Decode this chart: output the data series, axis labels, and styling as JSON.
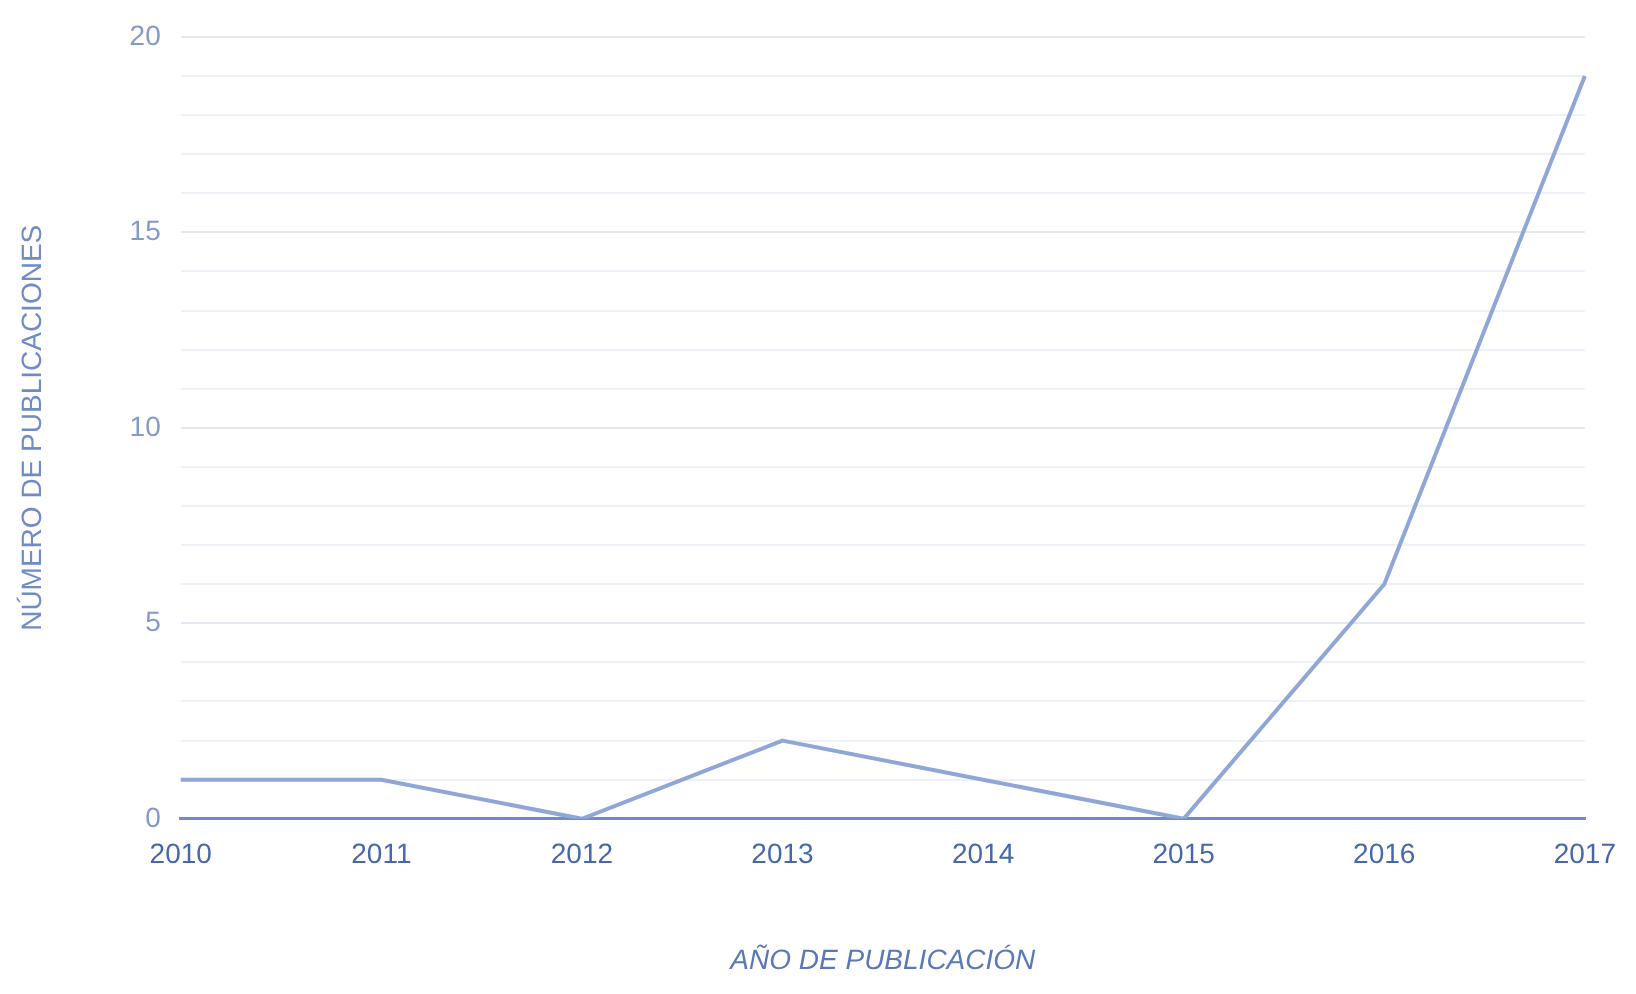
{
  "chart_data": {
    "type": "line",
    "xlabel": "AÑO DE PUBLICACIÓN",
    "ylabel": "NÚMERO DE PUBLICACIONES",
    "categories": [
      "2010",
      "2011",
      "2012",
      "2013",
      "2014",
      "2015",
      "2016",
      "2017"
    ],
    "series": [
      {
        "color": "#8fa6d6",
        "values": [
          1,
          1,
          0,
          2,
          1,
          0,
          6,
          19
        ]
      }
    ],
    "ylim": [
      0,
      20
    ],
    "yticks": [
      0,
      {
        "value": 1,
        "label": null
      },
      {
        "value": 2,
        "label": null
      },
      {
        "value": 3,
        "label": null
      },
      {
        "value": 4,
        "label": null
      },
      5,
      {
        "value": 6,
        "label": null
      },
      {
        "value": 7,
        "label": null
      },
      {
        "value": 8,
        "label": null
      },
      {
        "value": 9,
        "label": null
      },
      10,
      {
        "value": 11,
        "label": null
      },
      {
        "value": 12,
        "label": null
      },
      {
        "value": 13,
        "label": null
      },
      {
        "value": 14,
        "label": null
      },
      15,
      {
        "value": 16,
        "label": null
      },
      {
        "value": 17,
        "label": null
      },
      {
        "value": 18,
        "label": null
      },
      {
        "value": 19,
        "label": null
      },
      20
    ],
    "grid": "y",
    "legend": false,
    "marker": "none",
    "line_style": "solid"
  }
}
